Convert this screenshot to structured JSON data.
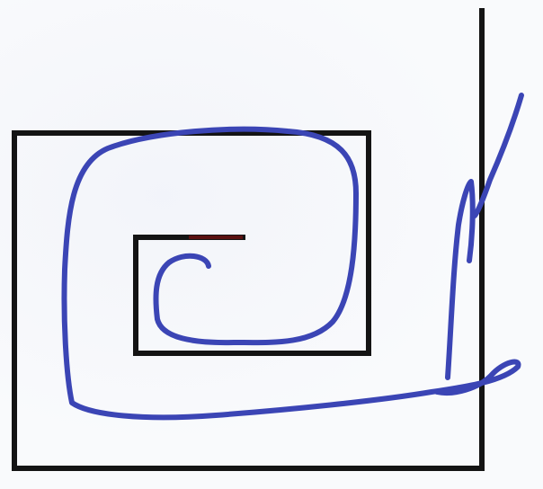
{
  "colors": {
    "paper": "#f9fafc",
    "printed_line": "#141414",
    "printed_accent": "#5a1010",
    "pen_ink": "#3b45b5"
  },
  "content": {
    "printed_figure": "nested-square-maze-outline",
    "handwritten_mark": "spiral-pen-trace"
  }
}
